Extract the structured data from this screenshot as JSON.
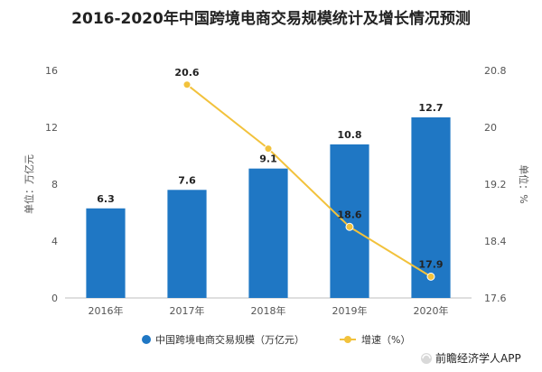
{
  "chart_data": {
    "type": "bar",
    "title": "2016-2020年中国跨境电商交易规模统计及增长情况预测",
    "categories": [
      "2016年",
      "2017年",
      "2018年",
      "2019年",
      "2020年"
    ],
    "series": [
      {
        "name": "中国跨境电商交易规模（万亿元）",
        "type": "bar",
        "axis": "left",
        "values": [
          6.3,
          7.6,
          9.1,
          10.8,
          12.7
        ],
        "labels": [
          "6.3",
          "7.6",
          "9.1",
          "10.8",
          "12.7"
        ]
      },
      {
        "name": "增速（%）",
        "type": "line",
        "axis": "right",
        "values": [
          null,
          20.6,
          19.7,
          18.6,
          17.9
        ],
        "labels": [
          "",
          "20.6",
          "",
          "18.6",
          "17.9"
        ]
      }
    ],
    "ylabel": "单位：万亿元",
    "y2label": "单位：%",
    "ylim": [
      0,
      16
    ],
    "yticks": [
      "0",
      "4",
      "8",
      "12",
      "16"
    ],
    "y2lim": [
      17.6,
      20.8
    ],
    "y2ticks": [
      "17.6",
      "18.4",
      "19.2",
      "20",
      "20.8"
    ],
    "grid": false,
    "legend": "bottom",
    "colors": {
      "bar": "#1f77c4",
      "line": "#f2c23c"
    }
  },
  "watermark": "前瞻经济学人APP"
}
